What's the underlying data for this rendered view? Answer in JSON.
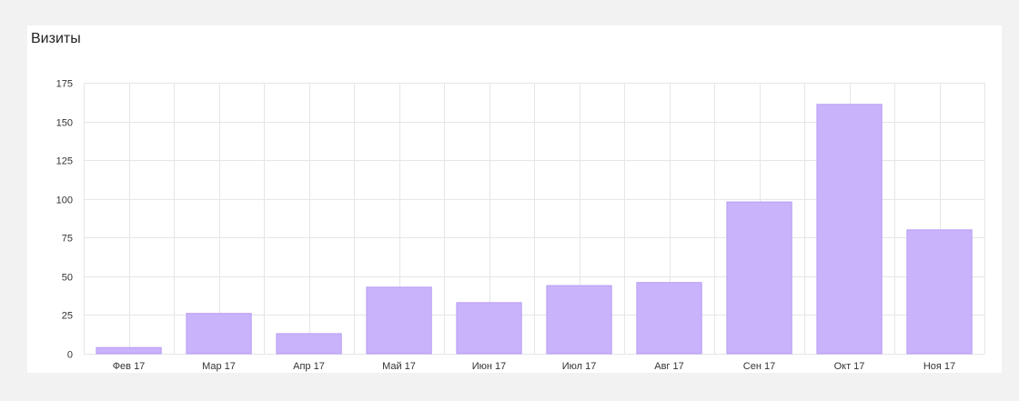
{
  "widget": {
    "title": "Визиты"
  },
  "colors": {
    "bar_fill": "#c9b3fb",
    "bar_stroke": "#b89cf5",
    "grid": "#e6e6e6"
  },
  "chart_data": {
    "type": "bar",
    "title": "Визиты",
    "xlabel": "",
    "ylabel": "",
    "categories": [
      "Фев 17",
      "Мар 17",
      "Апр 17",
      "Май 17",
      "Июн 17",
      "Июл 17",
      "Авг 17",
      "Сен 17",
      "Окт 17",
      "Ноя 17"
    ],
    "values": [
      4,
      26,
      13,
      43,
      33,
      44,
      46,
      98,
      161,
      80
    ],
    "yticks": [
      0,
      25,
      50,
      75,
      100,
      125,
      150,
      175
    ],
    "ylim": [
      0,
      175
    ],
    "grid": true,
    "legend": "none"
  }
}
